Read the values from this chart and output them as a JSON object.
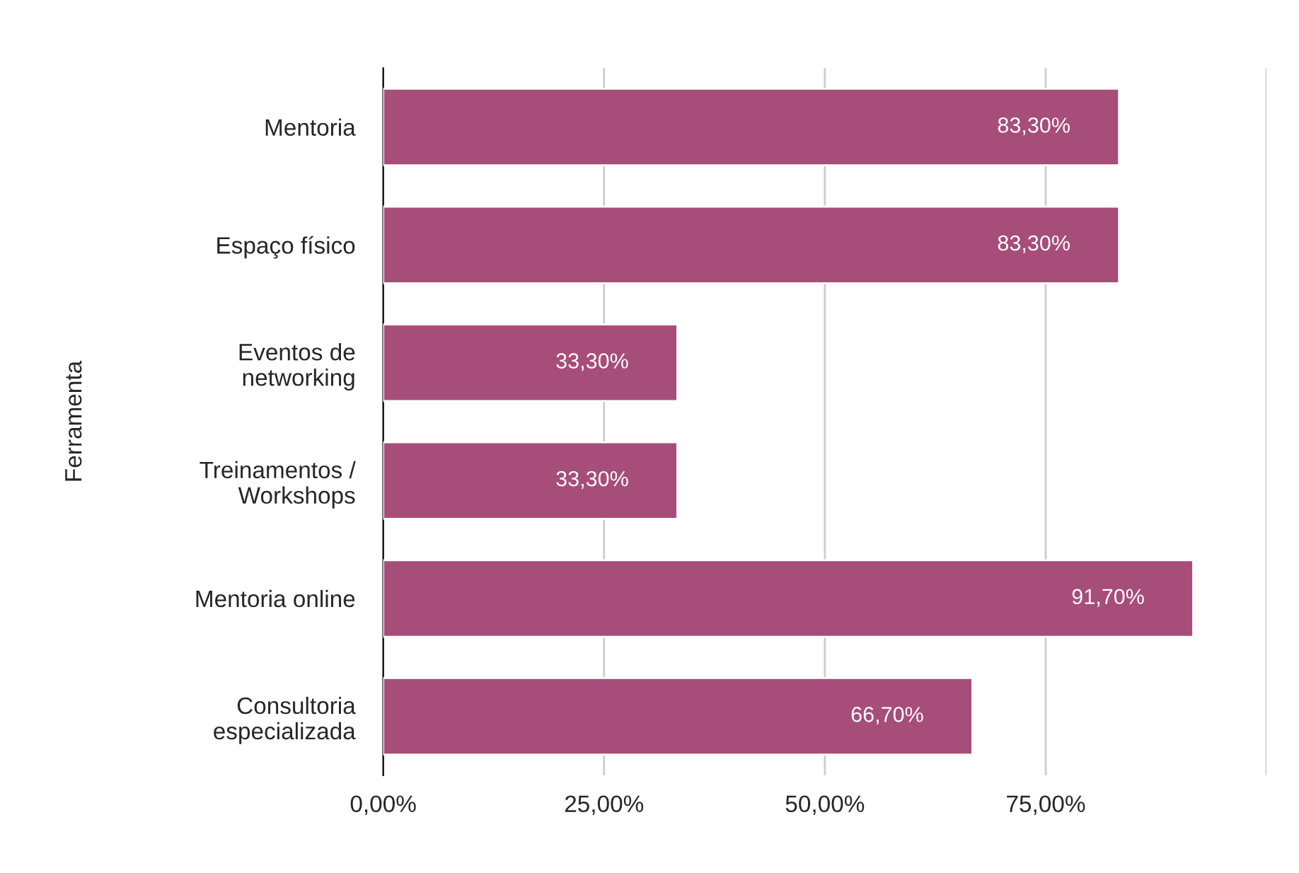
{
  "chart_data": {
    "type": "bar",
    "orientation": "horizontal",
    "ylabel": "Ferramenta",
    "categories": [
      "Mentoria",
      "Espaço físico",
      "Eventos de\nnetworking",
      "Treinamentos /\nWorkshops",
      "Mentoria online",
      "Consultoria\nespecializada"
    ],
    "values": [
      83.3,
      83.3,
      33.3,
      33.3,
      91.7,
      66.7
    ],
    "value_labels": [
      "83,30%",
      "83,30%",
      "33,30%",
      "33,30%",
      "91,70%",
      "66,70%"
    ],
    "color": "#a64d79",
    "xlim": [
      0,
      100
    ],
    "xticks": [
      {
        "value": 0,
        "label": "0,00%"
      },
      {
        "value": 25,
        "label": "25,00%"
      },
      {
        "value": 50,
        "label": "50,00%"
      },
      {
        "value": 75,
        "label": "75,00%"
      },
      {
        "value": 100,
        "label": null
      }
    ],
    "grid": "x"
  }
}
